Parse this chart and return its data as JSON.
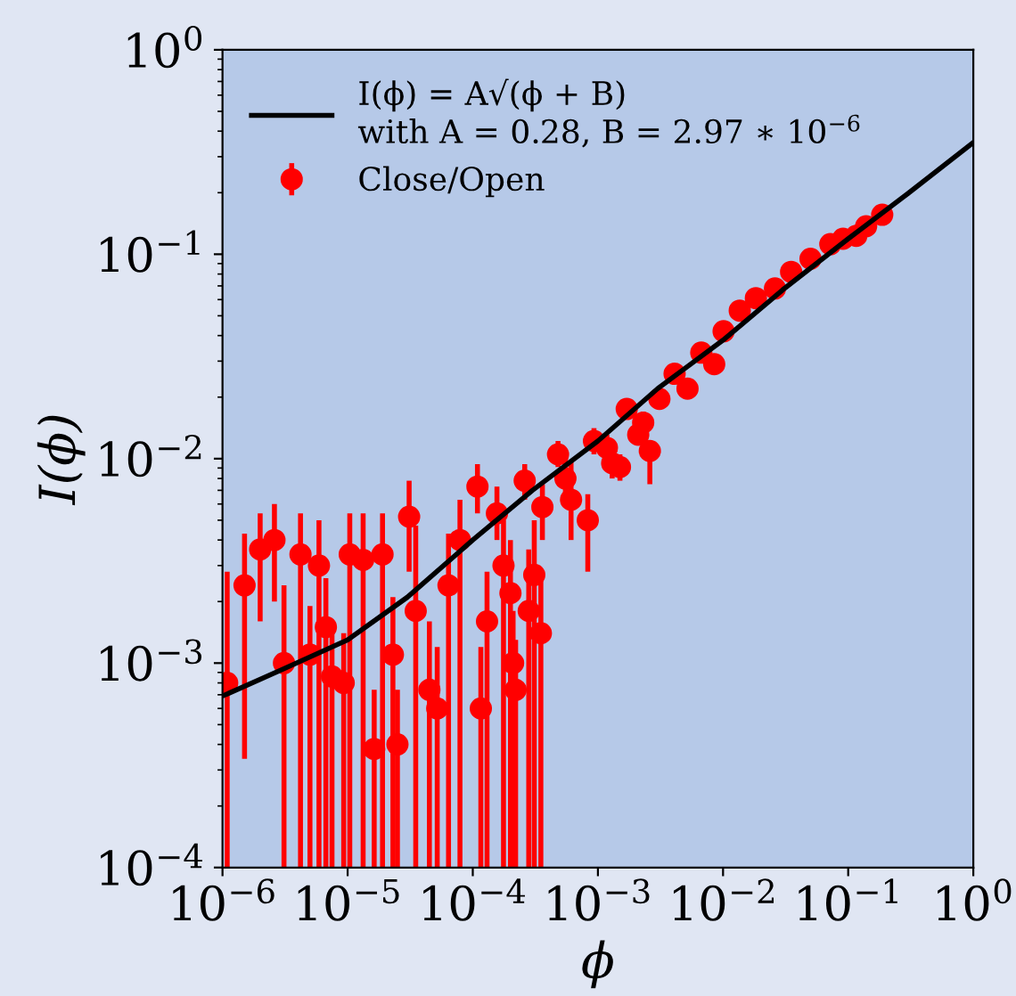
{
  "chart_data": {
    "type": "scatter",
    "xlabel": "ϕ",
    "ylabel": "I(ϕ)",
    "log": "xy",
    "xlim": [
      1e-06,
      1
    ],
    "ylim": [
      0.0001,
      1
    ],
    "xticks": [
      {
        "value": 1e-06,
        "label": "10$^{−6}$"
      },
      {
        "value": 1e-05,
        "label": "10$^{−5}$"
      },
      {
        "value": 0.0001,
        "label": "10$^{−4}$"
      },
      {
        "value": 0.001,
        "label": "10$^{−3}$"
      },
      {
        "value": 0.01,
        "label": "10$^{−2}$"
      },
      {
        "value": 0.1,
        "label": "10$^{−1}$"
      },
      {
        "value": 1,
        "label": "10$^{0}$"
      }
    ],
    "yticks": [
      {
        "value": 0.0001,
        "label": "10$^{−4}$"
      },
      {
        "value": 0.001,
        "label": "10$^{−3}$"
      },
      {
        "value": 0.01,
        "label": "10$^{−2}$"
      },
      {
        "value": 0.1,
        "label": "10$^{−1}$"
      },
      {
        "value": 1,
        "label": "10$^{0}$"
      }
    ],
    "grid": false,
    "legend": "top left",
    "series": [
      {
        "name": "I(ϕ) = A√(ϕ + B)\nwith A = 0.28, B = 2.97 ∗ 10$^{−6}$",
        "type": "line",
        "color": "#000000",
        "marker": "none",
        "line_style": "solid",
        "x": [
          1e-06,
          3e-06,
          1e-05,
          3e-05,
          0.0001,
          0.0003,
          0.001,
          0.003,
          0.01,
          0.03,
          0.1,
          0.3,
          1
        ],
        "values": [
          0.00069,
          0.00093,
          0.0013,
          0.0021,
          0.004,
          0.007,
          0.0122,
          0.022,
          0.038,
          0.067,
          0.119,
          0.198,
          0.352
        ]
      },
      {
        "name": "Close/Open",
        "color": "#ff0000",
        "marker": "circle",
        "x": [
          1.09e-06,
          1.5e-06,
          2e-06,
          2.6e-06,
          3.1e-06,
          4.2e-06,
          5e-06,
          5.9e-06,
          6.7e-06,
          7.5e-06,
          9.3e-06,
          1.04e-05,
          1.33e-05,
          1.63e-05,
          1.9e-05,
          2.3e-05,
          2.5e-05,
          3.1e-05,
          3.5e-05,
          4.5e-05,
          5.2e-05,
          6.4e-05,
          7.9e-05,
          0.000109,
          0.000116,
          0.00013,
          0.000156,
          0.000176,
          0.0002,
          0.00021,
          0.00022,
          0.00026,
          0.00028,
          0.00031,
          0.00035,
          0.00036,
          0.00048,
          0.00055,
          0.00061,
          0.00083,
          0.00093,
          0.00118,
          0.0013,
          0.0015,
          0.0017,
          0.0021,
          0.0023,
          0.0026,
          0.0031,
          0.0041,
          0.0052,
          0.0067,
          0.0085,
          0.0101,
          0.0136,
          0.0183,
          0.026,
          0.035,
          0.05,
          0.072,
          0.091,
          0.116,
          0.139,
          0.187
        ],
        "values": [
          0.0008,
          0.0024,
          0.0036,
          0.004,
          0.001,
          0.0034,
          0.0011,
          0.003,
          0.0015,
          0.00086,
          0.0008,
          0.0034,
          0.0032,
          0.00038,
          0.0034,
          0.0011,
          0.0004,
          0.0052,
          0.0018,
          0.00074,
          0.0006,
          0.0024,
          0.004,
          0.0073,
          0.0006,
          0.0016,
          0.0054,
          0.003,
          0.0022,
          0.001,
          0.00074,
          0.0078,
          0.0018,
          0.0027,
          0.0014,
          0.0058,
          0.0105,
          0.008,
          0.0063,
          0.005,
          0.0122,
          0.0113,
          0.0095,
          0.0091,
          0.0175,
          0.0131,
          0.015,
          0.0109,
          0.0196,
          0.026,
          0.022,
          0.033,
          0.029,
          0.042,
          0.053,
          0.061,
          0.068,
          0.082,
          0.095,
          0.112,
          0.119,
          0.123,
          0.137,
          0.156
        ],
        "errors": [
          [
            0.0001,
            0.0028
          ],
          [
            0.00034,
            0.0043
          ],
          [
            0.0016,
            0.0054
          ],
          [
            0.002,
            0.006
          ],
          [
            0.0001,
            0.0024
          ],
          [
            0.0001,
            0.0054
          ],
          [
            0.0001,
            0.0019
          ],
          [
            0.0001,
            0.005
          ],
          [
            0.0001,
            0.0026
          ],
          [
            0.0001,
            0.0016
          ],
          [
            0.0001,
            0.0014
          ],
          [
            0.0001,
            0.0054
          ],
          [
            0.0001,
            0.0054
          ],
          [
            0.0001,
            0.00074
          ],
          [
            0.0001,
            0.0054
          ],
          [
            0.0001,
            0.0021
          ],
          [
            0.0001,
            0.00074
          ],
          [
            0.0028,
            0.0078
          ],
          [
            0.0001,
            0.0047
          ],
          [
            0.0001,
            0.0016
          ],
          [
            0.0001,
            0.0012
          ],
          [
            0.0001,
            0.0043
          ],
          [
            0.0001,
            0.0063
          ],
          [
            0.0054,
            0.0094
          ],
          [
            0.0001,
            0.0012
          ],
          [
            0.0001,
            0.0028
          ],
          [
            0.004,
            0.0073
          ],
          [
            0.0001,
            0.005
          ],
          [
            0.0001,
            0.004
          ],
          [
            0.0001,
            0.0018
          ],
          [
            0.0001,
            0.0013
          ],
          [
            0.0063,
            0.0094
          ],
          [
            0.0001,
            0.0036
          ],
          [
            0.0001,
            0.005
          ],
          [
            0.0001,
            0.0026
          ],
          [
            0.004,
            0.0075
          ],
          [
            0.0091,
            0.0122
          ],
          [
            0.006,
            0.01
          ],
          [
            0.004,
            0.0098
          ],
          [
            0.0028,
            0.0067
          ],
          [
            0.0105,
            0.0141
          ],
          [
            0.0098,
            0.0131
          ],
          [
            0.008,
            0.011
          ],
          [
            0.0078,
            0.0105
          ],
          [
            0.0157,
            0.0189
          ],
          null,
          [
            0.013,
            0.017
          ],
          [
            0.0075,
            0.0122
          ],
          null,
          null,
          null,
          null,
          null,
          null,
          null,
          null,
          null,
          null,
          null,
          null,
          null,
          null,
          null,
          null
        ]
      }
    ]
  }
}
